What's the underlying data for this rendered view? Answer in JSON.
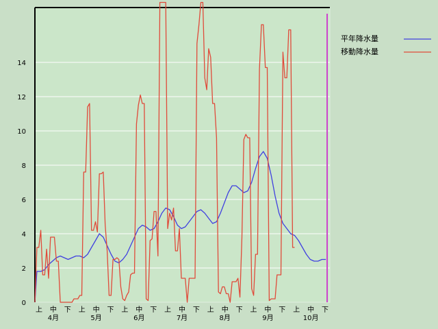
{
  "chart_data": {
    "type": "line",
    "ylim": [
      0,
      17.2
    ],
    "y_ticks": [
      0,
      2,
      4,
      6,
      8,
      10,
      12,
      14
    ],
    "x_period_labels": [
      "上",
      "中",
      "下",
      "上",
      "中",
      "下",
      "上",
      "中",
      "下",
      "上",
      "中",
      "下",
      "上",
      "中",
      "下",
      "上",
      "中",
      "下",
      "上",
      "中",
      "下"
    ],
    "x_month_labels": [
      "4月",
      "5月",
      "6月",
      "7月",
      "8月",
      "9月",
      "10月"
    ],
    "grid": true,
    "legend_position": "top-right",
    "series": [
      {
        "name": "平年降水量",
        "color": "#4040e0",
        "points": [
          [
            0,
            0
          ],
          [
            1,
            1.8
          ],
          [
            3,
            1.8
          ],
          [
            5,
            1.9
          ],
          [
            7,
            2.2
          ],
          [
            9,
            2.4
          ],
          [
            11,
            2.6
          ],
          [
            13,
            2.7
          ],
          [
            15,
            2.6
          ],
          [
            17,
            2.5
          ],
          [
            19,
            2.6
          ],
          [
            21,
            2.7
          ],
          [
            23,
            2.7
          ],
          [
            25,
            2.6
          ],
          [
            27,
            2.8
          ],
          [
            29,
            3.2
          ],
          [
            31,
            3.6
          ],
          [
            33,
            4.0
          ],
          [
            35,
            3.8
          ],
          [
            37,
            3.3
          ],
          [
            39,
            2.8
          ],
          [
            41,
            2.4
          ],
          [
            43,
            2.3
          ],
          [
            45,
            2.5
          ],
          [
            47,
            2.8
          ],
          [
            49,
            3.3
          ],
          [
            51,
            3.8
          ],
          [
            53,
            4.3
          ],
          [
            55,
            4.5
          ],
          [
            57,
            4.4
          ],
          [
            59,
            4.2
          ],
          [
            61,
            4.3
          ],
          [
            63,
            4.7
          ],
          [
            65,
            5.2
          ],
          [
            67,
            5.5
          ],
          [
            69,
            5.4
          ],
          [
            71,
            5.0
          ],
          [
            73,
            4.5
          ],
          [
            75,
            4.3
          ],
          [
            77,
            4.4
          ],
          [
            79,
            4.7
          ],
          [
            81,
            5.0
          ],
          [
            83,
            5.3
          ],
          [
            85,
            5.4
          ],
          [
            87,
            5.2
          ],
          [
            89,
            4.9
          ],
          [
            91,
            4.6
          ],
          [
            93,
            4.7
          ],
          [
            95,
            5.2
          ],
          [
            97,
            5.8
          ],
          [
            99,
            6.4
          ],
          [
            101,
            6.8
          ],
          [
            103,
            6.8
          ],
          [
            105,
            6.6
          ],
          [
            107,
            6.4
          ],
          [
            109,
            6.5
          ],
          [
            111,
            7.0
          ],
          [
            113,
            7.8
          ],
          [
            115,
            8.5
          ],
          [
            117,
            8.8
          ],
          [
            119,
            8.4
          ],
          [
            121,
            7.4
          ],
          [
            123,
            6.2
          ],
          [
            125,
            5.2
          ],
          [
            127,
            4.6
          ],
          [
            129,
            4.3
          ],
          [
            131,
            4.0
          ],
          [
            133,
            3.9
          ],
          [
            135,
            3.6
          ],
          [
            137,
            3.2
          ],
          [
            139,
            2.8
          ],
          [
            141,
            2.5
          ],
          [
            143,
            2.4
          ],
          [
            145,
            2.4
          ],
          [
            147,
            2.5
          ],
          [
            149,
            2.5
          ]
        ]
      },
      {
        "name": "移動降水量",
        "color": "#e04a3a",
        "points": [
          [
            0,
            0
          ],
          [
            1,
            3.2
          ],
          [
            2,
            3.2
          ],
          [
            3,
            4.2
          ],
          [
            4,
            1.6
          ],
          [
            5,
            1.6
          ],
          [
            6,
            3.1
          ],
          [
            7,
            1.4
          ],
          [
            8,
            3.8
          ],
          [
            9,
            3.8
          ],
          [
            10,
            3.8
          ],
          [
            11,
            2.4
          ],
          [
            12,
            2.4
          ],
          [
            13,
            0
          ],
          [
            15,
            0
          ],
          [
            17,
            0
          ],
          [
            19,
            0
          ],
          [
            20,
            0.2
          ],
          [
            21,
            0.2
          ],
          [
            22,
            0.2
          ],
          [
            23,
            0.4
          ],
          [
            24,
            0.4
          ],
          [
            25,
            7.6
          ],
          [
            26,
            7.6
          ],
          [
            27,
            11.4
          ],
          [
            28,
            11.6
          ],
          [
            29,
            4.2
          ],
          [
            30,
            4.2
          ],
          [
            31,
            4.7
          ],
          [
            32,
            4.1
          ],
          [
            33,
            7.5
          ],
          [
            34,
            7.5
          ],
          [
            35,
            7.6
          ],
          [
            36,
            4.5
          ],
          [
            37,
            3.0
          ],
          [
            38,
            0.4
          ],
          [
            39,
            0.4
          ],
          [
            40,
            2.5
          ],
          [
            41,
            2.5
          ],
          [
            42,
            2.6
          ],
          [
            43,
            2.5
          ],
          [
            44,
            0.9
          ],
          [
            45,
            0.2
          ],
          [
            46,
            0.1
          ],
          [
            47,
            0.4
          ],
          [
            48,
            0.6
          ],
          [
            49,
            1.6
          ],
          [
            50,
            1.7
          ],
          [
            51,
            1.7
          ],
          [
            52,
            10.4
          ],
          [
            53,
            11.5
          ],
          [
            54,
            12.1
          ],
          [
            55,
            11.6
          ],
          [
            56,
            11.6
          ],
          [
            57,
            0.2
          ],
          [
            58,
            0.1
          ],
          [
            59,
            3.6
          ],
          [
            60,
            3.7
          ],
          [
            61,
            5.3
          ],
          [
            62,
            5.3
          ],
          [
            63,
            2.7
          ],
          [
            64,
            17.5
          ],
          [
            65,
            17.5
          ],
          [
            66,
            17.5
          ],
          [
            67,
            17.5
          ],
          [
            68,
            4.3
          ],
          [
            69,
            5.2
          ],
          [
            70,
            4.8
          ],
          [
            71,
            5.5
          ],
          [
            72,
            3.0
          ],
          [
            73,
            3.0
          ],
          [
            74,
            4.3
          ],
          [
            75,
            1.4
          ],
          [
            76,
            1.4
          ],
          [
            77,
            1.4
          ],
          [
            78,
            0
          ],
          [
            79,
            1.4
          ],
          [
            80,
            1.4
          ],
          [
            81,
            1.4
          ],
          [
            82,
            1.4
          ],
          [
            83,
            15.1
          ],
          [
            84,
            16.2
          ],
          [
            85,
            17.5
          ],
          [
            86,
            17.5
          ],
          [
            87,
            13.1
          ],
          [
            88,
            12.4
          ],
          [
            89,
            14.8
          ],
          [
            90,
            14.3
          ],
          [
            91,
            11.6
          ],
          [
            92,
            11.6
          ],
          [
            93,
            9.6
          ],
          [
            94,
            0.6
          ],
          [
            95,
            0.5
          ],
          [
            96,
            0.9
          ],
          [
            97,
            0.9
          ],
          [
            98,
            0.5
          ],
          [
            99,
            0.5
          ],
          [
            100,
            0
          ],
          [
            101,
            1.2
          ],
          [
            102,
            1.2
          ],
          [
            103,
            1.2
          ],
          [
            104,
            1.4
          ],
          [
            105,
            0.3
          ],
          [
            106,
            3.8
          ],
          [
            107,
            9.5
          ],
          [
            108,
            9.8
          ],
          [
            109,
            9.6
          ],
          [
            110,
            9.6
          ],
          [
            111,
            0.8
          ],
          [
            112,
            0.4
          ],
          [
            113,
            2.8
          ],
          [
            114,
            2.8
          ],
          [
            115,
            13.6
          ],
          [
            116,
            16.2
          ],
          [
            117,
            16.2
          ],
          [
            118,
            13.7
          ],
          [
            119,
            13.7
          ],
          [
            120,
            0.1
          ],
          [
            121,
            0.2
          ],
          [
            122,
            0.2
          ],
          [
            123,
            0.2
          ],
          [
            124,
            1.6
          ],
          [
            125,
            1.6
          ],
          [
            126,
            1.6
          ],
          [
            127,
            14.6
          ],
          [
            128,
            13.1
          ],
          [
            129,
            13.1
          ],
          [
            130,
            15.9
          ],
          [
            131,
            15.9
          ],
          [
            132,
            3.2
          ],
          [
            133,
            3.2
          ]
        ]
      }
    ]
  }
}
